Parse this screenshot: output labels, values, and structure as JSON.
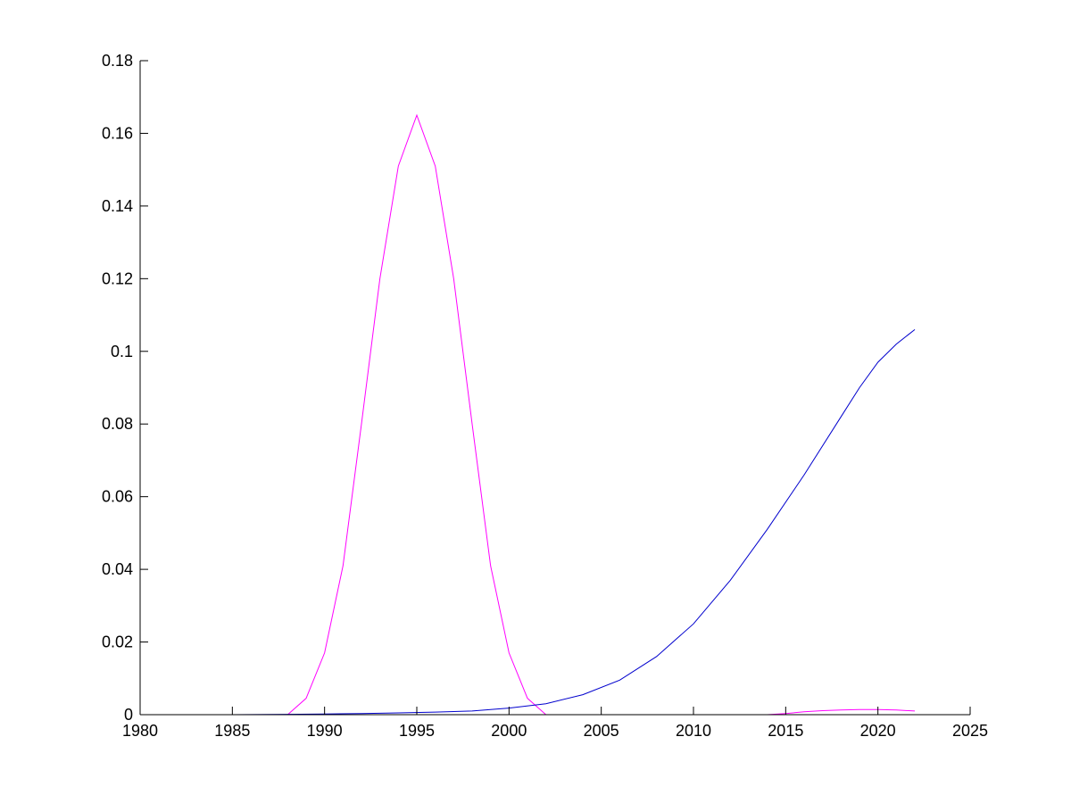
{
  "chart_data": {
    "type": "line",
    "title": "",
    "xlabel": "",
    "ylabel": "",
    "xlim": [
      1980,
      2025
    ],
    "ylim": [
      0,
      0.18
    ],
    "grid": false,
    "xticks": [
      "1980",
      "1985",
      "1990",
      "1995",
      "2000",
      "2005",
      "2010",
      "2015",
      "2020",
      "2025"
    ],
    "yticks": [
      "0",
      "0.02",
      "0.04",
      "0.06",
      "0.08",
      "0.1",
      "0.12",
      "0.14",
      "0.16",
      "0.18"
    ],
    "series": [
      {
        "color": "#ff00ff",
        "points": [
          [
            1980,
            0
          ],
          [
            1985,
            0
          ],
          [
            1988,
            0
          ],
          [
            1989,
            0.0045
          ],
          [
            1990,
            0.017
          ],
          [
            1991,
            0.041
          ],
          [
            1992,
            0.08
          ],
          [
            1993,
            0.12
          ],
          [
            1994,
            0.151
          ],
          [
            1995,
            0.165
          ],
          [
            1996,
            0.151
          ],
          [
            1997,
            0.12
          ],
          [
            1998,
            0.08
          ],
          [
            1999,
            0.041
          ],
          [
            2000,
            0.017
          ],
          [
            2001,
            0.0045
          ],
          [
            2002,
            0
          ],
          [
            2005,
            0
          ],
          [
            2010,
            0
          ],
          [
            2014,
            0
          ],
          [
            2015,
            0.0003
          ],
          [
            2016,
            0.0008
          ],
          [
            2017,
            0.0011
          ],
          [
            2018,
            0.0013
          ],
          [
            2019,
            0.0014
          ],
          [
            2020,
            0.0014
          ],
          [
            2021,
            0.0013
          ],
          [
            2022,
            0.001
          ]
        ]
      },
      {
        "color": "#0000cd",
        "points": [
          [
            1980,
            0
          ],
          [
            1985,
            0
          ],
          [
            1988,
            0.0001
          ],
          [
            1990,
            0.0002
          ],
          [
            1992,
            0.0003
          ],
          [
            1994,
            0.0005
          ],
          [
            1996,
            0.0007
          ],
          [
            1998,
            0.001
          ],
          [
            2000,
            0.0018
          ],
          [
            2002,
            0.003
          ],
          [
            2004,
            0.0055
          ],
          [
            2006,
            0.0095
          ],
          [
            2008,
            0.016
          ],
          [
            2010,
            0.025
          ],
          [
            2012,
            0.037
          ],
          [
            2014,
            0.051
          ],
          [
            2016,
            0.066
          ],
          [
            2018,
            0.082
          ],
          [
            2019,
            0.09
          ],
          [
            2020,
            0.097
          ],
          [
            2021,
            0.102
          ],
          [
            2022,
            0.106
          ]
        ]
      }
    ]
  }
}
